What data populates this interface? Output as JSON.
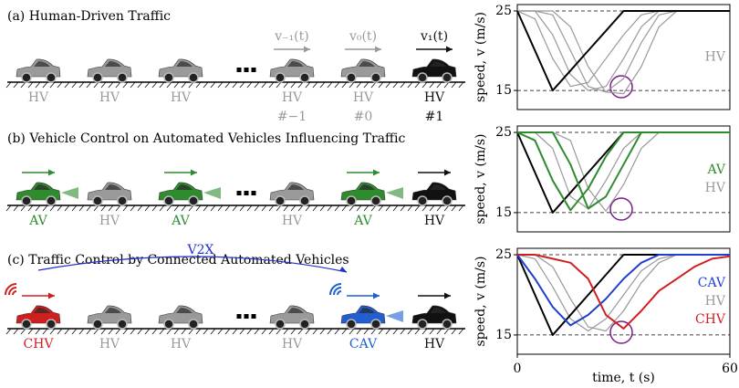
{
  "diagram": {
    "panels": [
      {
        "title": "(a) Human-Driven Traffic",
        "cars": [
          {
            "label": "HV",
            "color": "#9a9a9a"
          },
          {
            "label": "HV",
            "color": "#9a9a9a"
          },
          {
            "label": "HV",
            "color": "#9a9a9a"
          },
          {
            "label": "HV",
            "color": "#9a9a9a",
            "index": "#−1",
            "velocity": "v₋₁(t)"
          },
          {
            "label": "HV",
            "color": "#9a9a9a",
            "index": "#0",
            "velocity": "v₀(t)"
          },
          {
            "label": "HV",
            "color": "#111111",
            "index": "#1",
            "velocity": "v₁(t)"
          }
        ]
      },
      {
        "title": "(b) Vehicle Control on Automated Vehicles Influencing Traffic",
        "cars": [
          {
            "label": "AV",
            "color": "#2e8b2e"
          },
          {
            "label": "HV",
            "color": "#9a9a9a"
          },
          {
            "label": "AV",
            "color": "#2e8b2e"
          },
          {
            "label": "HV",
            "color": "#9a9a9a"
          },
          {
            "label": "AV",
            "color": "#2e8b2e"
          },
          {
            "label": "HV",
            "color": "#111111"
          }
        ]
      },
      {
        "title": "(c) Traffic Control by Connected Automated Vehicles",
        "link": "V2X",
        "cars": [
          {
            "label": "CHV",
            "color": "#d11f1f"
          },
          {
            "label": "HV",
            "color": "#9a9a9a"
          },
          {
            "label": "HV",
            "color": "#9a9a9a"
          },
          {
            "label": "HV",
            "color": "#9a9a9a"
          },
          {
            "label": "CAV",
            "color": "#1f5fd1"
          },
          {
            "label": "HV",
            "color": "#111111"
          }
        ]
      }
    ]
  },
  "chart_data": [
    {
      "type": "line",
      "ylabel": "speed, v (m/s)",
      "xlim": [
        0,
        60
      ],
      "ylim": [
        12.6,
        25.8
      ],
      "yticks": [
        15,
        25
      ],
      "grid": true,
      "x": [
        0,
        5,
        10,
        15,
        20,
        25,
        30,
        35,
        40,
        45,
        50,
        55,
        60
      ],
      "series": [
        {
          "color": "#000000",
          "values": [
            25,
            20,
            15,
            17.5,
            20,
            22.5,
            25,
            25,
            25,
            25,
            25,
            25,
            25
          ]
        },
        {
          "color": "#999999",
          "values": [
            25,
            24,
            19,
            15.5,
            16,
            19,
            22,
            24.5,
            25,
            25,
            25,
            25,
            25
          ]
        },
        {
          "color": "#999999",
          "values": [
            25,
            25,
            22,
            17,
            15,
            15.5,
            19,
            23,
            25,
            25,
            25,
            25,
            25
          ]
        },
        {
          "color": "#999999",
          "values": [
            25,
            25,
            24.5,
            20,
            15.5,
            14.8,
            16.5,
            21,
            24.5,
            25,
            25,
            25,
            25
          ]
        },
        {
          "name": "HV",
          "color": "#999999",
          "values": [
            25,
            25,
            25,
            23,
            18,
            14.8,
            14.6,
            18,
            23,
            25,
            25,
            25,
            25
          ]
        }
      ]
    },
    {
      "type": "line",
      "ylabel": "speed, v (m/s)",
      "xlim": [
        0,
        60
      ],
      "ylim": [
        12.6,
        25.8
      ],
      "yticks": [
        15,
        25
      ],
      "grid": true,
      "x": [
        0,
        5,
        10,
        15,
        20,
        25,
        30,
        35,
        40,
        45,
        50,
        55,
        60
      ],
      "series": [
        {
          "color": "#000000",
          "values": [
            25,
            20,
            15,
            17.5,
            20,
            22.5,
            25,
            25,
            25,
            25,
            25,
            25,
            25
          ]
        },
        {
          "name": "AV",
          "color": "#2e8b2e",
          "values": [
            25,
            24,
            19,
            15.3,
            18,
            22,
            25,
            25,
            25,
            25,
            25,
            25,
            25
          ]
        },
        {
          "name": "HV",
          "color": "#999999",
          "values": [
            25,
            25,
            23,
            17,
            15.5,
            19,
            23,
            25,
            25,
            25,
            25,
            25,
            25
          ]
        },
        {
          "color": "#2e8b2e",
          "values": [
            25,
            25,
            25,
            21,
            15.5,
            17,
            21,
            25,
            25,
            25,
            25,
            25,
            25
          ]
        },
        {
          "color": "#999999",
          "values": [
            25,
            25,
            25,
            24,
            18,
            15.2,
            18.5,
            23,
            25,
            25,
            25,
            25,
            25
          ]
        }
      ]
    },
    {
      "type": "line",
      "ylabel": "speed, v (m/s)",
      "xlabel": "time, t (s)",
      "xlim": [
        0,
        60
      ],
      "ylim": [
        12.6,
        25.8
      ],
      "xticks": [
        0,
        60
      ],
      "yticks": [
        15,
        25
      ],
      "grid": true,
      "x": [
        0,
        5,
        10,
        15,
        20,
        25,
        30,
        35,
        40,
        45,
        50,
        55,
        60
      ],
      "series": [
        {
          "color": "#000000",
          "values": [
            25,
            20,
            15,
            17.5,
            20,
            22.5,
            25,
            25,
            25,
            25,
            25,
            25,
            25
          ]
        },
        {
          "name": "CAV",
          "color": "#1f3fd1",
          "values": [
            25,
            22,
            18.5,
            16.2,
            17.5,
            19.5,
            22,
            24,
            25,
            25,
            25,
            25,
            25
          ]
        },
        {
          "name": "HV",
          "color": "#999999",
          "values": [
            25,
            24.5,
            21,
            17,
            15.5,
            17,
            20,
            23,
            24.5,
            25,
            25,
            25,
            25
          ]
        },
        {
          "color": "#999999",
          "values": [
            25,
            25,
            23.5,
            19.5,
            16,
            15.5,
            18,
            21.5,
            24,
            25,
            25,
            25,
            25
          ]
        },
        {
          "name": "CHV",
          "color": "#d11f1f",
          "values": [
            25,
            25,
            24.5,
            24,
            22,
            17.5,
            15.8,
            18,
            20.5,
            22,
            23.5,
            24.5,
            24.8
          ]
        }
      ]
    }
  ]
}
